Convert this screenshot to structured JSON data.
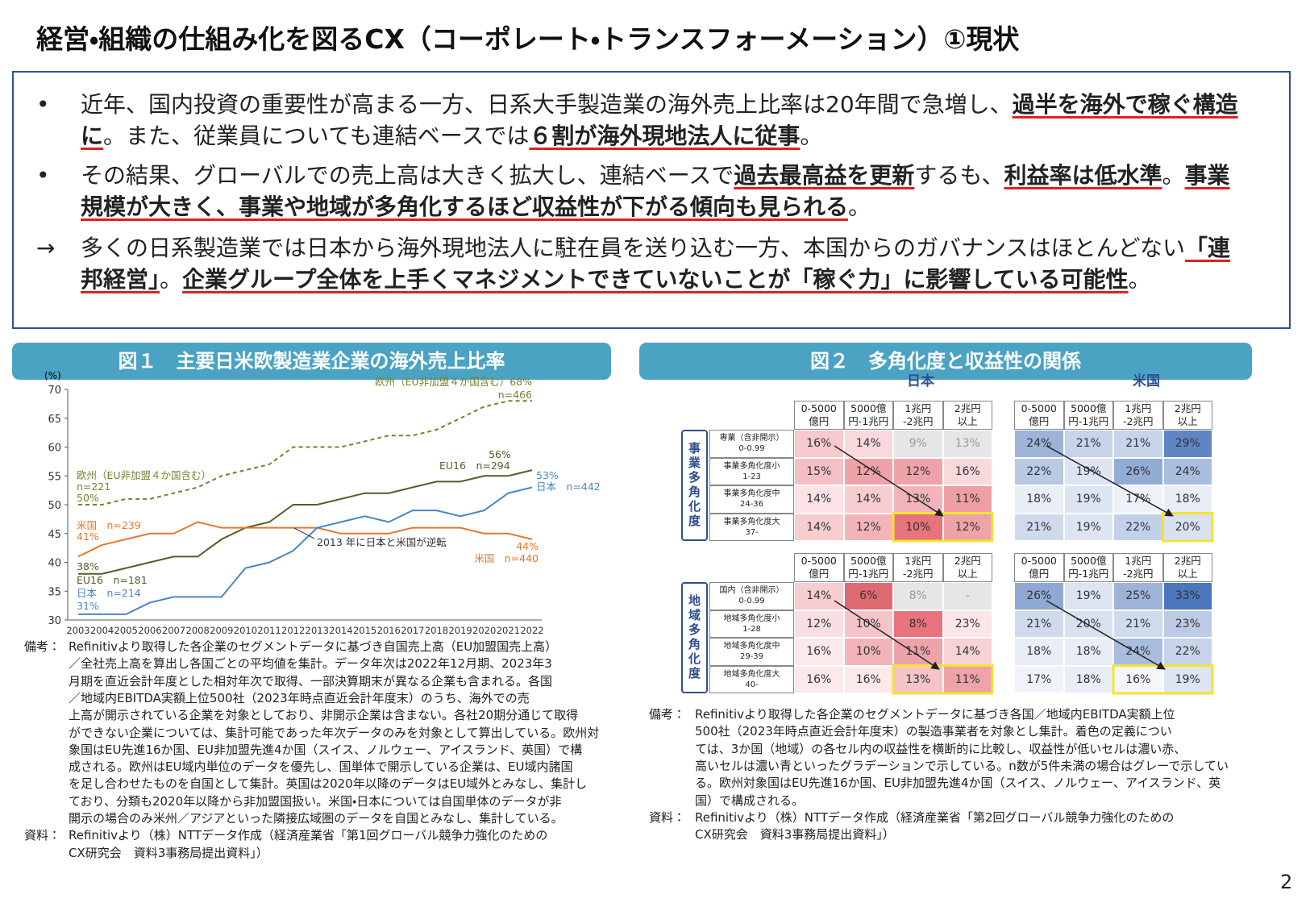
{
  "header": {
    "title": "経営・組織の仕組み化を図るCX（コーポレート・トランスフォーメーション）①現状"
  },
  "bullets": [
    {
      "marker": "•",
      "parts": [
        {
          "text": "近年、国内投資の重要性が高まる一方、日系大手製造業の海外売上比率は20年間で急増し、",
          "emphasis": false
        },
        {
          "text": "過半を海外で稼ぐ構造に",
          "emphasis": true
        },
        {
          "text": "。また、従業員についても連結ベースでは",
          "emphasis": false
        },
        {
          "text": "６割が海外現地法人に従事",
          "emphasis": true
        },
        {
          "text": "。",
          "emphasis": false
        }
      ]
    },
    {
      "marker": "•",
      "parts": [
        {
          "text": "その結果、グローバルでの売上高は大きく拡大し、連結ベースで",
          "emphasis": false
        },
        {
          "text": "過去最高益を更新",
          "emphasis": true
        },
        {
          "text": "するも、",
          "emphasis": false
        },
        {
          "text": "利益率は低水準",
          "emphasis": true
        },
        {
          "text": "。",
          "emphasis": false
        },
        {
          "text": "事業規模が大きく、事業や地域が多角化するほど収益性が下がる傾向も見られる",
          "emphasis": true
        },
        {
          "text": "。",
          "emphasis": false
        }
      ]
    },
    {
      "marker": "→",
      "parts": [
        {
          "text": "多くの日系製造業では日本から海外現地法人に駐在員を送り込む一方、本国からのガバナンスはほとんどない",
          "emphasis": false
        },
        {
          "text": "「連邦経営」",
          "emphasis": true
        },
        {
          "text": "。",
          "emphasis": false
        },
        {
          "text": "企業グループ全体を上手くマネジメントできていないことが「稼ぐ力」に影響している可能性",
          "emphasis": true
        },
        {
          "text": "。",
          "emphasis": false
        }
      ]
    }
  ],
  "figure1": {
    "title": "図１　主要日米欧製造業企業の海外売上比率",
    "notes": [
      {
        "label": "備考：",
        "lines": [
          "Refinitivより取得した各企業のセグメントデータに基づき自国売上高（EU加盟国売上高）",
          "／全社売上高を算出し各国ごとの平均値を集計。データ年次は2022年12月期、2023年3",
          "月期を直近会計年度とした相対年次で取得、一部決算期末が異なる企業も含まれる。各国",
          "／地域内EBITDA実額上位500社（2023年時点直近会計年度末）のうち、海外での売",
          "上高が開示されている企業を対象としており、非開示企業は含まない。各社20期分通じて取得",
          "ができない企業については、集計可能であった年次データのみを対象として算出している。欧州対",
          "象国はEU先進16か国、EU非加盟先進4か国（スイス、ノルウェー、アイスランド、英国）で構",
          "成される。欧州はEU域内単位のデータを優先し、国単体で開示している企業は、EU域内諸国",
          "を足し合わせたものを自国として集計。英国は2020年以降のデータはEU域外とみなし、集計し",
          "ており、分類も2020年以降から非加盟国扱い。米国・日本については自国単体のデータが非",
          "開示の場合のみ米州／アジアといった隣接広域圏のデータを自国とみなし、集計している。"
        ]
      },
      {
        "label": "資料：",
        "lines": [
          "Refinitivより（株）NTTデータ作成（経済産業省「第1回グローバル競争力強化のための",
          "CX研究会　資料3事務局提出資料」）"
        ]
      }
    ]
  },
  "chart_data": {
    "type": "line",
    "y_unit": "(%)",
    "categories": [
      "2003",
      "2004",
      "2005",
      "2006",
      "2007",
      "2008",
      "2009",
      "2010",
      "2011",
      "2012",
      "2013",
      "2014",
      "2015",
      "2016",
      "2017",
      "2018",
      "2019",
      "2020",
      "2021",
      "2022"
    ],
    "ylim": [
      30,
      70
    ],
    "yticks": [
      30,
      35,
      40,
      45,
      50,
      55,
      60,
      65,
      70
    ],
    "grid": false,
    "series": [
      {
        "color": "#7b7f2c",
        "dashed": true,
        "values": [
          50,
          50,
          51,
          51,
          52,
          53,
          55,
          56,
          57,
          60,
          60,
          60,
          61,
          62,
          62,
          63,
          65,
          67,
          68,
          68
        ]
      },
      {
        "color": "#4f6127",
        "dashed": false,
        "values": [
          38,
          38,
          39,
          40,
          41,
          41,
          44,
          46,
          47,
          50,
          50,
          51,
          52,
          52,
          53,
          54,
          54,
          55,
          55,
          56
        ]
      },
      {
        "color": "#e5772a",
        "dashed": false,
        "values": [
          41,
          43,
          44,
          45,
          45,
          47,
          46,
          46,
          46,
          46,
          46,
          45,
          45,
          45,
          46,
          46,
          46,
          45,
          45,
          44
        ]
      },
      {
        "color": "#4a86c5",
        "dashed": false,
        "values": [
          31,
          31,
          31,
          33,
          34,
          34,
          34,
          39,
          40,
          42,
          46,
          47,
          48,
          47,
          49,
          49,
          48,
          49,
          52,
          53
        ]
      }
    ],
    "annotations": [
      {
        "text": "欧州（EU非加盟４か国含む）68%",
        "color": "#7b7f2c"
      },
      {
        "text": "n=466",
        "color": "#7b7f2c"
      },
      {
        "text": "欧州（EU非加盟４か国含む）",
        "color": "#7b7f2c"
      },
      {
        "text": "n=221",
        "color": "#7b7f2c"
      },
      {
        "text": "50%",
        "color": "#7b7f2c"
      },
      {
        "text": "米国　n=239",
        "color": "#e5772a"
      },
      {
        "text": "41%",
        "color": "#e5772a"
      },
      {
        "text": "38%",
        "color": "#4f6127"
      },
      {
        "text": "EU16　n=181",
        "color": "#4f6127"
      },
      {
        "text": "日本　n=214",
        "color": "#4a86c5"
      },
      {
        "text": "31%",
        "color": "#4a86c5"
      },
      {
        "text": "56%",
        "color": "#4f6127"
      },
      {
        "text": "EU16　n=294",
        "color": "#4f6127"
      },
      {
        "text": "53%",
        "color": "#4a86c5"
      },
      {
        "text": "日本　n=442",
        "color": "#4a86c5"
      },
      {
        "text": "44%",
        "color": "#e5772a"
      },
      {
        "text": "米国　n=440",
        "color": "#e5772a"
      },
      {
        "text": "2013 年に日本と米国が逆転",
        "color": "#333333"
      }
    ]
  },
  "figure2": {
    "title": "図２　多角化度と収益性の関係",
    "country_labels": [
      "日本",
      "米国"
    ],
    "columns": [
      [
        "0-5000",
        "億円"
      ],
      [
        "5000億",
        "円-1兆円"
      ],
      [
        "1兆円",
        "-2兆円"
      ],
      [
        "2兆円",
        "以上"
      ]
    ],
    "panels": [
      {
        "side_label": "事業多角化度",
        "row_labels": [
          [
            "専業（含非開示）",
            "0-0.99"
          ],
          [
            "事業多角化度小",
            "1-23"
          ],
          [
            "事業多角化度中",
            "24-36"
          ],
          [
            "事業多角化度大",
            "37-"
          ]
        ],
        "tables": [
          {
            "cells": [
              [
                "16%",
                "14%",
                "9%",
                "13%"
              ],
              [
                "15%",
                "12%",
                "12%",
                "16%"
              ],
              [
                "14%",
                "14%",
                "13%",
                "11%"
              ],
              [
                "14%",
                "12%",
                "10%",
                "12%"
              ]
            ],
            "colors": [
              [
                "#f7c9cc",
                "#f9d9db",
                "#e6e6e6",
                "#e6e6e6"
              ],
              [
                "#f5c0c4",
                "#eea3a9",
                "#eea3a9",
                "#f9d9db"
              ],
              [
                "#fbe3e5",
                "#f7cdd0",
                "#f2b4b9",
                "#ee9ea4"
              ],
              [
                "#f7cdd0",
                "#f2b4b9",
                "#e8737c",
                "#eea3a9"
              ]
            ]
          },
          {
            "cells": [
              [
                "24%",
                "21%",
                "21%",
                "29%"
              ],
              [
                "22%",
                "19%",
                "26%",
                "24%"
              ],
              [
                "18%",
                "19%",
                "17%",
                "18%"
              ],
              [
                "21%",
                "19%",
                "22%",
                "20%"
              ]
            ],
            "colors": [
              [
                "#9db3d8",
                "#c7d4ea",
                "#c7d4ea",
                "#5f86c3"
              ],
              [
                "#b9c9e4",
                "#dde5f2",
                "#93acd6",
                "#a9bedf"
              ],
              [
                "#e8edf6",
                "#dde5f2",
                "#eef2f8",
                "#e8edf6"
              ],
              [
                "#cfdaed",
                "#dde5f2",
                "#c2d1e9",
                "#d8e1f0"
              ]
            ]
          }
        ]
      },
      {
        "side_label": "地域多角化度",
        "row_labels": [
          [
            "国内（含非開示）",
            "0-0.99"
          ],
          [
            "地域多角化度小",
            "1-28"
          ],
          [
            "地域多角化度中",
            "29-39"
          ],
          [
            "地域多角化度大",
            "40-"
          ]
        ],
        "tables": [
          {
            "cells": [
              [
                "14%",
                "6%",
                "8%",
                "-"
              ],
              [
                "12%",
                "10%",
                "8%",
                "23%"
              ],
              [
                "16%",
                "10%",
                "11%",
                "14%"
              ],
              [
                "16%",
                "16%",
                "13%",
                "11%"
              ]
            ],
            "colors": [
              [
                "#f7cdd0",
                "#e06a72",
                "#e6e6e6",
                "#e6e6e6"
              ],
              [
                "#f9dfe1",
                "#f5c4c8",
                "#e8737c",
                "#fbe7e8"
              ],
              [
                "#fce9ea",
                "#f2b4b9",
                "#eea3a9",
                "#f7d3d6"
              ],
              [
                "#fce9ea",
                "#fce9ea",
                "#f5c4c8",
                "#eea3a9"
              ]
            ]
          },
          {
            "cells": [
              [
                "26%",
                "19%",
                "25%",
                "33%"
              ],
              [
                "21%",
                "20%",
                "21%",
                "23%"
              ],
              [
                "18%",
                "18%",
                "24%",
                "22%"
              ],
              [
                "17%",
                "18%",
                "16%",
                "19%"
              ]
            ],
            "colors": [
              [
                "#8fa9d4",
                "#dde5f2",
                "#9db3d8",
                "#4a76bd"
              ],
              [
                "#cfdaed",
                "#d8e1f0",
                "#cfdaed",
                "#bccbe5"
              ],
              [
                "#e8edf6",
                "#e8edf6",
                "#a9bedf",
                "#c7d4ea"
              ],
              [
                "#f0f3f9",
                "#e8edf6",
                "#f4f6fa",
                "#dde5f2"
              ]
            ]
          }
        ]
      }
    ],
    "notes": [
      {
        "label": "備考：",
        "lines": [
          "Refinitivより取得した各企業のセグメントデータに基づき各国／地域内EBITDA実額上位",
          "500社（2023年時点直近会計年度末）の製造事業者を対象とし集計。着色の定義につい",
          "ては、3か国（地域）の各セル内の収益性を横断的に比較し、収益性が低いセルは濃い赤、",
          "高いセルは濃い青といったグラデーションで示している。n数が5件未満の場合はグレーで示してい",
          "る。欧州対象国はEU先進16か国、EU非加盟先進4か国（スイス、ノルウェー、アイスランド、英",
          "国）で構成される。"
        ]
      },
      {
        "label": "資料：",
        "lines": [
          "Refinitivより（株）NTTデータ作成（経済産業省「第2回グローバル競争力強化のための",
          "CX研究会　資料3事務局提出資料」）"
        ]
      }
    ]
  },
  "page_number": "2"
}
